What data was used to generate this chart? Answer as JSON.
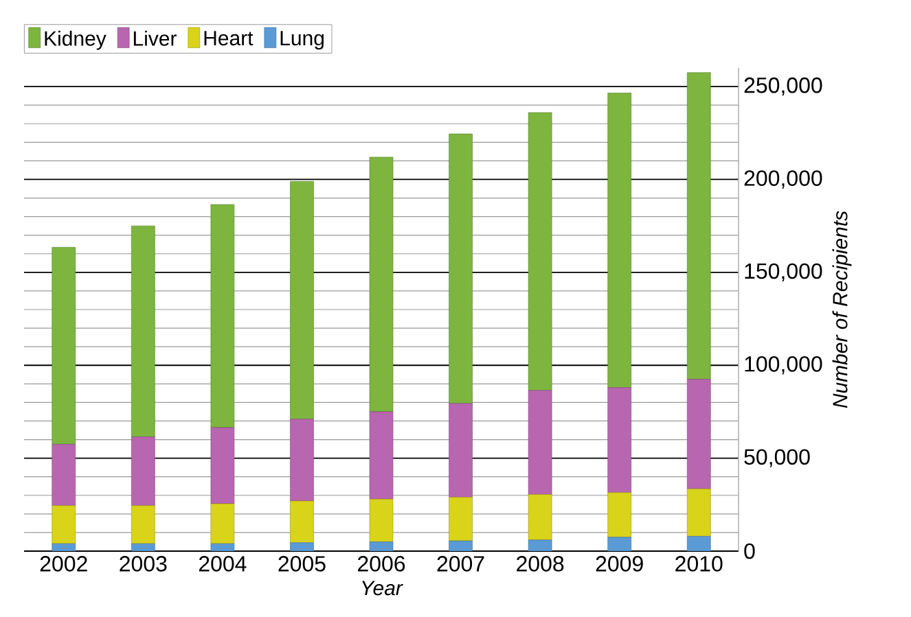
{
  "chart_data": {
    "type": "bar",
    "stacked": true,
    "xlabel": "Year",
    "ylabel": "Number of Recipients",
    "categories": [
      "2002",
      "2003",
      "2004",
      "2005",
      "2006",
      "2007",
      "2008",
      "2009",
      "2010"
    ],
    "series": [
      {
        "name": "Lung",
        "color": "#5b9bd5",
        "values": [
          4000,
          4000,
          4000,
          4500,
          5000,
          5500,
          6000,
          7500,
          8000
        ]
      },
      {
        "name": "Heart",
        "color": "#d9d31a",
        "values": [
          20500,
          20500,
          21500,
          22500,
          23000,
          23500,
          24500,
          24000,
          25500
        ]
      },
      {
        "name": "Liver",
        "color": "#b866b0",
        "values": [
          33000,
          37000,
          41000,
          44000,
          47000,
          50500,
          56000,
          56500,
          59000
        ]
      },
      {
        "name": "Kidney",
        "color": "#7db53f",
        "values": [
          106000,
          113500,
          120000,
          128000,
          137000,
          145000,
          149500,
          158500,
          165000
        ]
      }
    ],
    "ylim": [
      0,
      260000
    ],
    "yticks": [
      {
        "value": 0,
        "label": "0"
      },
      {
        "value": 50000,
        "label": "50,000"
      },
      {
        "value": 100000,
        "label": "100,000"
      },
      {
        "value": 150000,
        "label": "150,000"
      },
      {
        "value": 200000,
        "label": "200,000"
      },
      {
        "value": 250000,
        "label": "250,000"
      }
    ],
    "grid": "y",
    "legend": "top left"
  }
}
